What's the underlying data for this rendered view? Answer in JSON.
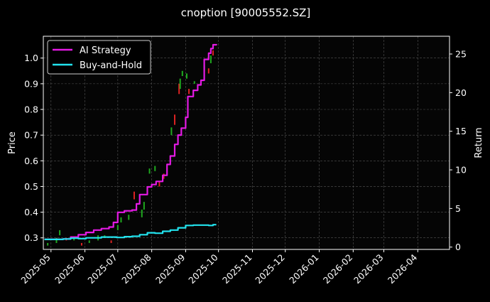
{
  "chart_data": {
    "type": "line",
    "title": "cnoption [90005552.SZ]",
    "ylabel": "Price",
    "y2label": "Return",
    "xlabel": "",
    "x_range": [
      "2025-04-24",
      "2026-04-30"
    ],
    "ylim": [
      0.255,
      1.085
    ],
    "y2lim": [
      -0.3,
      27.3
    ],
    "grid": true,
    "legend_position": "top-left",
    "colors": {
      "background": "#000000",
      "axes_face": "#050505",
      "text": "#ffffff",
      "grid": "#555555",
      "ai_strategy": "#e41ae4",
      "buy_and_hold": "#22e3ee",
      "candle_up": "#1faa1f",
      "candle_down": "#dd2222"
    },
    "x_ticks": [
      "2025-05",
      "2025-06",
      "2025-07",
      "2025-08",
      "2025-09",
      "2025-10",
      "2025-11",
      "2025-12",
      "2026-01",
      "2026-02",
      "2026-03",
      "2026-04"
    ],
    "y_ticks": [
      "0.3",
      "0.4",
      "0.5",
      "0.6",
      "0.7",
      "0.8",
      "0.9",
      "1.0"
    ],
    "y2_ticks": [
      "0",
      "5",
      "10",
      "15",
      "20",
      "25"
    ],
    "series": [
      {
        "name": "AI Strategy",
        "axis": "right",
        "x": [
          "2025-04-25",
          "2025-05-05",
          "2025-05-12",
          "2025-05-19",
          "2025-05-26",
          "2025-06-02",
          "2025-06-09",
          "2025-06-16",
          "2025-06-23",
          "2025-06-27",
          "2025-07-01",
          "2025-07-07",
          "2025-07-14",
          "2025-07-18",
          "2025-07-21",
          "2025-07-28",
          "2025-08-01",
          "2025-08-05",
          "2025-08-11",
          "2025-08-15",
          "2025-08-18",
          "2025-08-22",
          "2025-08-25",
          "2025-08-28",
          "2025-09-01",
          "2025-09-03",
          "2025-09-08",
          "2025-09-12",
          "2025-09-15",
          "2025-09-18",
          "2025-09-22",
          "2025-09-24",
          "2025-09-26",
          "2025-09-29"
        ],
        "values": [
          1.0,
          1.0,
          1.05,
          1.3,
          1.6,
          1.9,
          2.2,
          2.4,
          2.6,
          3.2,
          4.5,
          4.7,
          4.8,
          5.6,
          6.8,
          7.8,
          8.1,
          8.5,
          9.3,
          10.7,
          11.8,
          13.3,
          14.5,
          15.4,
          16.8,
          19.5,
          20.3,
          21.0,
          21.6,
          24.3,
          25.1,
          25.7,
          26.2,
          26.3
        ]
      },
      {
        "name": "Buy-and-Hold",
        "axis": "right",
        "x": [
          "2025-04-25",
          "2025-05-05",
          "2025-05-12",
          "2025-05-19",
          "2025-05-26",
          "2025-06-02",
          "2025-06-09",
          "2025-06-16",
          "2025-06-23",
          "2025-06-30",
          "2025-07-07",
          "2025-07-14",
          "2025-07-21",
          "2025-07-28",
          "2025-08-04",
          "2025-08-11",
          "2025-08-18",
          "2025-08-25",
          "2025-09-01",
          "2025-09-08",
          "2025-09-15",
          "2025-09-22",
          "2025-09-26",
          "2025-09-29"
        ],
        "values": [
          1.0,
          1.0,
          1.05,
          1.15,
          1.1,
          1.2,
          1.2,
          1.3,
          1.3,
          1.25,
          1.35,
          1.4,
          1.6,
          1.85,
          1.8,
          2.05,
          2.2,
          2.5,
          2.8,
          2.85,
          2.85,
          2.8,
          2.9,
          2.9
        ]
      }
    ],
    "candles": [
      {
        "x": "2025-04-28",
        "open": 0.27,
        "close": 0.28
      },
      {
        "x": "2025-05-06",
        "open": 0.28,
        "close": 0.3
      },
      {
        "x": "2025-05-09",
        "open": 0.31,
        "close": 0.33
      },
      {
        "x": "2025-05-15",
        "open": 0.3,
        "close": 0.29
      },
      {
        "x": "2025-05-22",
        "open": 0.29,
        "close": 0.3
      },
      {
        "x": "2025-05-29",
        "open": 0.28,
        "close": 0.27
      },
      {
        "x": "2025-06-05",
        "open": 0.28,
        "close": 0.29
      },
      {
        "x": "2025-06-13",
        "open": 0.29,
        "close": 0.31
      },
      {
        "x": "2025-06-19",
        "open": 0.3,
        "close": 0.31
      },
      {
        "x": "2025-06-25",
        "open": 0.29,
        "close": 0.28
      },
      {
        "x": "2025-07-01",
        "open": 0.33,
        "close": 0.35
      },
      {
        "x": "2025-07-04",
        "open": 0.36,
        "close": 0.38
      },
      {
        "x": "2025-07-11",
        "open": 0.37,
        "close": 0.39
      },
      {
        "x": "2025-07-16",
        "open": 0.48,
        "close": 0.45
      },
      {
        "x": "2025-07-23",
        "open": 0.38,
        "close": 0.41
      },
      {
        "x": "2025-07-25",
        "open": 0.41,
        "close": 0.44
      },
      {
        "x": "2025-07-30",
        "open": 0.55,
        "close": 0.57
      },
      {
        "x": "2025-08-04",
        "open": 0.56,
        "close": 0.58
      },
      {
        "x": "2025-08-08",
        "open": 0.52,
        "close": 0.5
      },
      {
        "x": "2025-08-12",
        "open": 0.55,
        "close": 0.53
      },
      {
        "x": "2025-08-19",
        "open": 0.7,
        "close": 0.73
      },
      {
        "x": "2025-08-22",
        "open": 0.78,
        "close": 0.74
      },
      {
        "x": "2025-08-26",
        "open": 0.9,
        "close": 0.86
      },
      {
        "x": "2025-08-27",
        "open": 0.88,
        "close": 0.92
      },
      {
        "x": "2025-08-29",
        "open": 0.93,
        "close": 0.95
      },
      {
        "x": "2025-09-02",
        "open": 0.92,
        "close": 0.94
      },
      {
        "x": "2025-09-04",
        "open": 0.88,
        "close": 0.86
      },
      {
        "x": "2025-09-09",
        "open": 0.9,
        "close": 0.91
      },
      {
        "x": "2025-09-18",
        "open": 0.95,
        "close": 0.97
      },
      {
        "x": "2025-09-22",
        "open": 0.96,
        "close": 0.94
      },
      {
        "x": "2025-09-24",
        "open": 0.98,
        "close": 1.01
      },
      {
        "x": "2025-09-26",
        "open": 1.03,
        "close": 1.01
      }
    ]
  }
}
